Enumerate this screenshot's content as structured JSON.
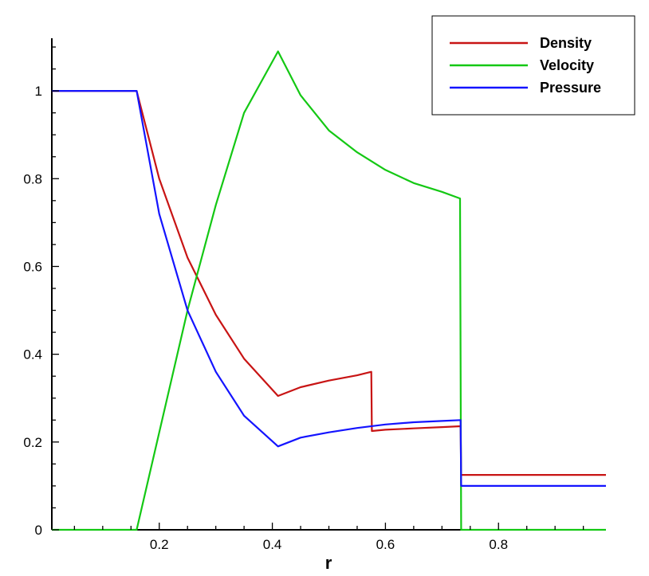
{
  "chart_data": {
    "type": "line",
    "xlabel": "r",
    "ylabel": "",
    "xlim": [
      0.01,
      0.99
    ],
    "ylim": [
      0,
      1.12
    ],
    "x_ticks": [
      0.2,
      0.4,
      0.6,
      0.8
    ],
    "x_tick_labels": [
      "0.2",
      "0.4",
      "0.6",
      "0.8"
    ],
    "y_ticks": [
      0,
      0.2,
      0.4,
      0.6,
      0.8,
      1.0
    ],
    "y_tick_labels": [
      "0",
      "0.2",
      "0.4",
      "0.6",
      "0.8",
      "1"
    ],
    "legend_position": "top-right",
    "grid": false,
    "series": [
      {
        "name": "Density",
        "color": "#c81414",
        "x": [
          0.01,
          0.16,
          0.2,
          0.25,
          0.3,
          0.35,
          0.41,
          0.45,
          0.5,
          0.55,
          0.575,
          0.576,
          0.6,
          0.65,
          0.7,
          0.733,
          0.734,
          0.99
        ],
        "y": [
          1.0,
          1.0,
          0.8,
          0.62,
          0.49,
          0.39,
          0.305,
          0.325,
          0.34,
          0.352,
          0.36,
          0.225,
          0.228,
          0.231,
          0.234,
          0.236,
          0.125,
          0.125
        ]
      },
      {
        "name": "Velocity",
        "color": "#14c814",
        "x": [
          0.01,
          0.16,
          0.25,
          0.3,
          0.35,
          0.41,
          0.45,
          0.5,
          0.55,
          0.6,
          0.65,
          0.7,
          0.732,
          0.734,
          0.99
        ],
        "y": [
          0.0,
          0.0,
          0.5,
          0.74,
          0.95,
          1.09,
          0.99,
          0.91,
          0.86,
          0.82,
          0.79,
          0.77,
          0.755,
          0.0,
          0.0
        ]
      },
      {
        "name": "Pressure",
        "color": "#1414ff",
        "x": [
          0.01,
          0.16,
          0.2,
          0.25,
          0.3,
          0.35,
          0.41,
          0.45,
          0.5,
          0.55,
          0.6,
          0.65,
          0.7,
          0.733,
          0.734,
          0.99
        ],
        "y": [
          1.0,
          1.0,
          0.72,
          0.5,
          0.36,
          0.26,
          0.19,
          0.21,
          0.222,
          0.232,
          0.24,
          0.245,
          0.248,
          0.25,
          0.1,
          0.1
        ]
      }
    ]
  }
}
